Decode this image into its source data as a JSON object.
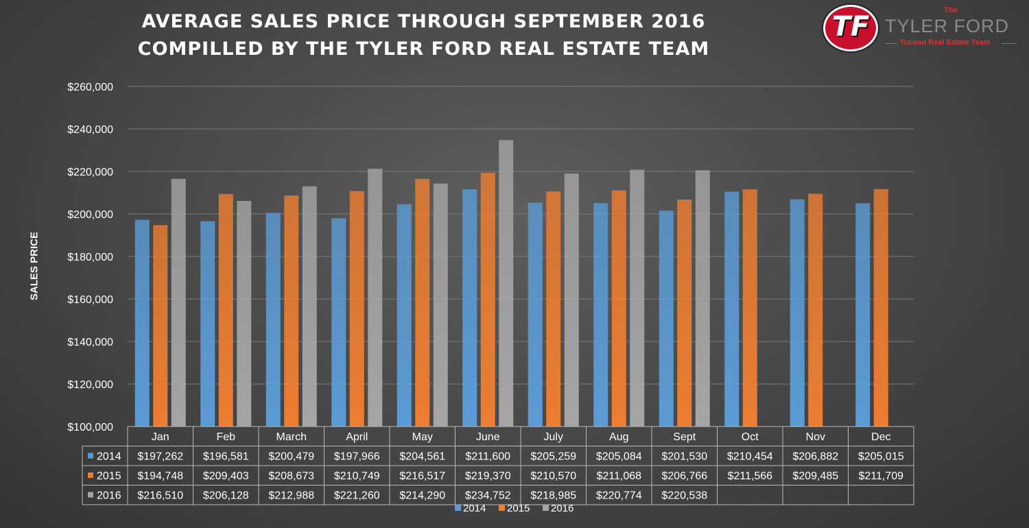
{
  "chart_data": {
    "type": "bar",
    "title_lines": [
      "AVERAGE SALES PRICE THROUGH SEPTEMBER 2016",
      "COMPILLED BY THE TYLER FORD REAL ESTATE TEAM"
    ],
    "ylabel": "SALES PRICE",
    "ylim": [
      100000,
      260000
    ],
    "yticks": [
      "$100,000",
      "$120,000",
      "$140,000",
      "$160,000",
      "$180,000",
      "$200,000",
      "$220,000",
      "$240,000",
      "$260,000"
    ],
    "categories": [
      "Jan",
      "Feb",
      "March",
      "April",
      "May",
      "June",
      "July",
      "Aug",
      "Sept",
      "Oct",
      "Nov",
      "Dec"
    ],
    "series": [
      {
        "name": "2014",
        "color": "#5b9bd5",
        "values": [
          197262,
          196581,
          200479,
          197966,
          204561,
          211600,
          205259,
          205084,
          201530,
          210454,
          206882,
          205015
        ],
        "labels": [
          "$197,262",
          "$196,581",
          "$200,479",
          "$197,966",
          "$204,561",
          "$211,600",
          "$205,259",
          "$205,084",
          "$201,530",
          "$210,454",
          "$206,882",
          "$205,015"
        ]
      },
      {
        "name": "2015",
        "color": "#ed7d31",
        "values": [
          194748,
          209403,
          208673,
          210749,
          216517,
          219370,
          210570,
          211068,
          206766,
          211566,
          209485,
          211709
        ],
        "labels": [
          "$194,748",
          "$209,403",
          "$208,673",
          "$210,749",
          "$216,517",
          "$219,370",
          "$210,570",
          "$211,068",
          "$206,766",
          "$211,566",
          "$209,485",
          "$211,709"
        ]
      },
      {
        "name": "2016",
        "color": "#a5a5a5",
        "values": [
          216510,
          206128,
          212988,
          221260,
          214290,
          234752,
          218985,
          220774,
          220538,
          null,
          null,
          null
        ],
        "labels": [
          "$216,510",
          "$206,128",
          "$212,988",
          "$221,260",
          "$214,290",
          "$234,752",
          "$218,985",
          "$220,774",
          "$220,538",
          "",
          "",
          ""
        ]
      }
    ],
    "grid": true,
    "legend": "bottom-center"
  },
  "logo": {
    "monogram": "TF",
    "the": "The",
    "name": "TYLER FORD",
    "tagline": "Tucson Real Estate Team"
  }
}
